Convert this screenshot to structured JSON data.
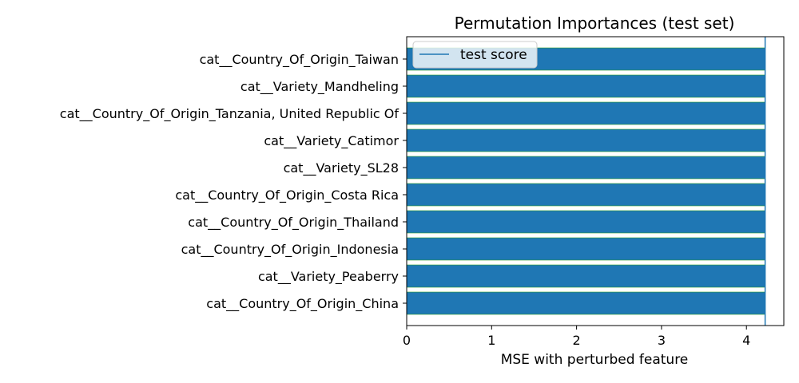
{
  "chart_data": {
    "type": "bar",
    "orientation": "horizontal",
    "title": "Permutation Importances (test set)",
    "xlabel": "MSE with perturbed feature",
    "ylabel": "",
    "categories": [
      "cat__Country_Of_Origin_Taiwan",
      "cat__Variety_Mandheling",
      "cat__Country_Of_Origin_Tanzania, United Republic Of",
      "cat__Variety_Catimor",
      "cat__Variety_SL28",
      "cat__Country_Of_Origin_Costa Rica",
      "cat__Country_Of_Origin_Thailand",
      "cat__Country_Of_Origin_Indonesia",
      "cat__Variety_Peaberry",
      "cat__Country_Of_Origin_China"
    ],
    "values": [
      4.22,
      4.22,
      4.22,
      4.22,
      4.22,
      4.22,
      4.22,
      4.22,
      4.22,
      4.22
    ],
    "xlim": [
      0,
      4.44
    ],
    "xticks": [
      0,
      1,
      2,
      3,
      4
    ],
    "reference_line": {
      "name": "test score",
      "value": 4.22
    },
    "legend": {
      "entries": [
        "test score"
      ],
      "placement": "top-left"
    },
    "grid": false,
    "colors": {
      "bar": "#1f77b4",
      "line": "#1f77b4",
      "bar_edge": "#2ca02c"
    }
  }
}
